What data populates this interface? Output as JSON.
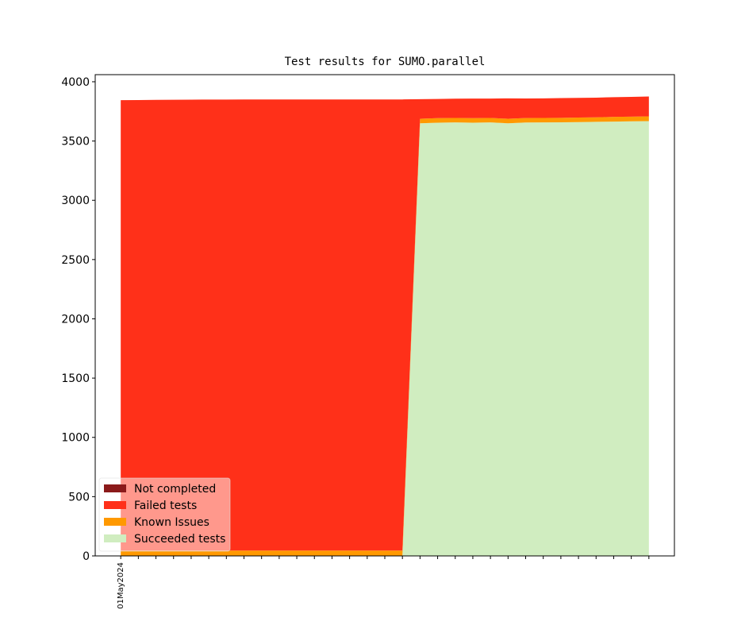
{
  "chart_data": {
    "type": "stacked_area",
    "title": "Test results for SUMO.parallel",
    "categories": [
      "01May2024",
      null,
      null,
      null,
      null,
      null,
      null,
      null,
      null,
      null,
      null,
      null,
      null,
      null,
      null,
      null,
      null,
      null,
      null,
      null,
      null,
      null,
      null,
      null,
      null,
      null,
      null,
      null,
      null,
      null,
      null
    ],
    "series": [
      {
        "name": "Succeeded tests",
        "color": "#d0edc0",
        "values": [
          0,
          0,
          0,
          0,
          0,
          0,
          0,
          0,
          0,
          0,
          0,
          0,
          0,
          0,
          0,
          0,
          0,
          3650,
          3655,
          3657,
          3655,
          3657,
          3650,
          3656,
          3657,
          3658,
          3660,
          3662,
          3664,
          3666,
          3668
        ]
      },
      {
        "name": "Known Issues",
        "color": "#ff9900",
        "values": [
          45,
          45,
          45,
          45,
          45,
          45,
          45,
          45,
          45,
          45,
          45,
          45,
          45,
          45,
          45,
          45,
          45,
          38,
          38,
          38,
          38,
          38,
          38,
          38,
          38,
          38,
          38,
          38,
          40,
          40,
          40
        ]
      },
      {
        "name": "Failed tests",
        "color": "#ff3019",
        "values": [
          3800,
          3801,
          3802,
          3803,
          3804,
          3805,
          3805,
          3806,
          3806,
          3806,
          3806,
          3806,
          3806,
          3806,
          3806,
          3806,
          3806,
          165,
          162,
          162,
          165,
          163,
          172,
          165,
          165,
          166,
          166,
          166,
          166,
          166,
          168
        ]
      },
      {
        "name": "Not completed",
        "color": "#8b1a1a",
        "values": [
          0,
          0,
          0,
          0,
          0,
          0,
          0,
          0,
          0,
          0,
          0,
          0,
          0,
          0,
          0,
          0,
          0,
          0,
          0,
          0,
          0,
          0,
          0,
          0,
          0,
          0,
          0,
          0,
          0,
          0,
          0
        ]
      }
    ],
    "ylim": [
      0,
      4060
    ],
    "yticks": [
      0,
      500,
      1000,
      1500,
      2000,
      2500,
      3000,
      3500,
      4000
    ],
    "legend": "lower left"
  }
}
